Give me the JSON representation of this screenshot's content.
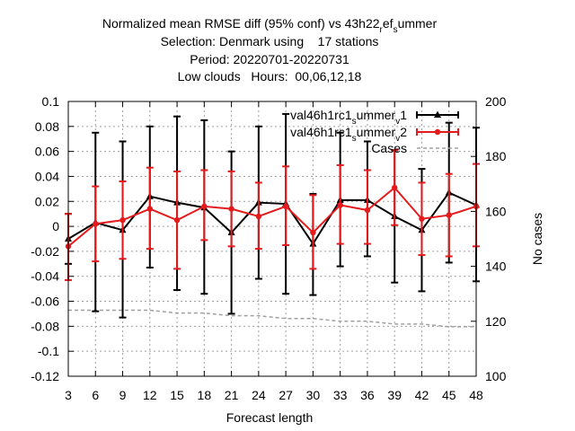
{
  "chart_data": {
    "type": "line",
    "title_lines": [
      "Normalized mean RMSE diff (95% conf) vs 43h22",
      "Selection: Denmark using    17 stations",
      "Period: 20220701-20220731",
      "Low clouds   Hours:  00,06,12,18"
    ],
    "title_line1_sub": {
      "a": "r",
      "b": "ef",
      "c": "s",
      "d": "ummer"
    },
    "xlabel": "Forecast length",
    "ylabel": "",
    "y2label": "No cases",
    "x": [
      3,
      6,
      9,
      12,
      15,
      18,
      21,
      24,
      27,
      30,
      33,
      36,
      39,
      42,
      45,
      48
    ],
    "x_ticks": [
      3,
      6,
      9,
      12,
      15,
      18,
      21,
      24,
      27,
      30,
      33,
      36,
      39,
      42,
      45,
      48
    ],
    "xlim": [
      3,
      48
    ],
    "ylim": [
      -0.12,
      0.1
    ],
    "y_ticks": [
      -0.12,
      -0.1,
      -0.08,
      -0.06,
      -0.04,
      -0.02,
      0,
      0.02,
      0.04,
      0.06,
      0.08,
      0.1
    ],
    "y_tick_labels": [
      "-0.12",
      "-0.1",
      "-0.08",
      "-0.06",
      "-0.04",
      "-0.02",
      "0",
      "0.02",
      "0.04",
      "0.06",
      "0.08",
      "0.1"
    ],
    "y2lim": [
      100,
      200
    ],
    "y2_ticks": [
      100,
      120,
      140,
      160,
      180,
      200
    ],
    "y2_tick_labels": [
      "100",
      "120",
      "140",
      "160",
      "180",
      "200"
    ],
    "grid": true,
    "legend_position": "top-right",
    "series": [
      {
        "name": "val46h1rc1",
        "name_sub1": "s",
        "name_mid": "ummer",
        "name_sub2": "v",
        "name_end": "1",
        "color": "#000000",
        "marker": "triangle",
        "y": [
          -0.01,
          0.003,
          -0.003,
          0.024,
          0.019,
          0.015,
          -0.005,
          0.019,
          0.018,
          -0.014,
          0.021,
          0.021,
          0.008,
          -0.003,
          0.027,
          0.017
        ],
        "low": [
          -0.03,
          -0.068,
          -0.073,
          -0.033,
          -0.051,
          -0.054,
          -0.07,
          -0.042,
          -0.054,
          -0.055,
          -0.032,
          -0.024,
          -0.045,
          -0.052,
          -0.029,
          -0.044
        ],
        "high": [
          0.01,
          0.075,
          0.068,
          0.08,
          0.088,
          0.085,
          0.06,
          0.08,
          0.09,
          0.026,
          0.075,
          0.068,
          0.061,
          0.046,
          0.083,
          0.079
        ]
      },
      {
        "name": "val46h1rc1",
        "name_sub1": "s",
        "name_mid": "ummer",
        "name_sub2": "v",
        "name_end": "2",
        "color": "#e41a1c",
        "marker": "circle",
        "y": [
          -0.016,
          0.002,
          0.005,
          0.014,
          0.005,
          0.016,
          0.014,
          0.008,
          0.016,
          -0.005,
          0.017,
          0.013,
          0.031,
          0.006,
          0.009,
          0.016
        ],
        "low": [
          -0.043,
          -0.028,
          -0.026,
          -0.018,
          -0.034,
          -0.011,
          -0.016,
          -0.018,
          -0.015,
          -0.034,
          -0.014,
          -0.014,
          0.001,
          -0.023,
          -0.024,
          -0.016
        ],
        "high": [
          0.01,
          0.032,
          0.036,
          0.047,
          0.044,
          0.045,
          0.044,
          0.035,
          0.048,
          0.025,
          0.049,
          0.045,
          0.061,
          0.035,
          0.042,
          0.05
        ]
      },
      {
        "name": "Cases",
        "color": "#a0a0a0",
        "style": "dashed",
        "axis": "y2",
        "y": [
          124,
          124,
          124,
          124,
          123,
          123,
          122,
          122,
          121,
          121,
          120,
          120,
          119,
          119,
          118,
          118
        ]
      }
    ]
  }
}
